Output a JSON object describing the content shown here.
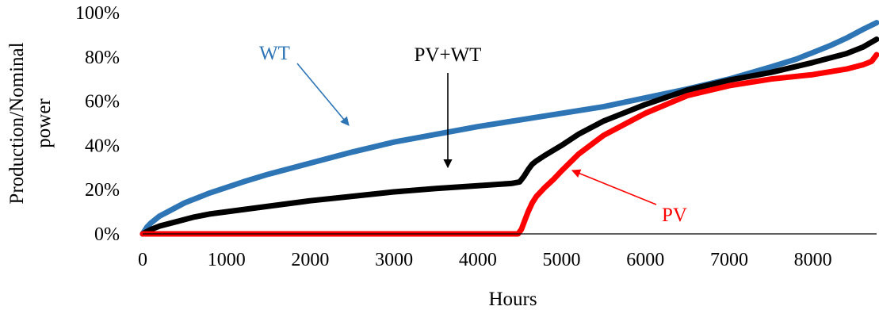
{
  "chart_data": {
    "type": "line",
    "xlabel": "Hours",
    "ylabel": [
      "Production/Nominal",
      "power"
    ],
    "xlim": [
      0,
      8760
    ],
    "ylim": [
      0,
      1
    ],
    "xticks": [
      "0",
      "1000",
      "2000",
      "3000",
      "4000",
      "5000",
      "6000",
      "7000",
      "8000"
    ],
    "yticks": [
      "0%",
      "20%",
      "40%",
      "60%",
      "80%",
      "100%"
    ],
    "grid": false,
    "legend": "none",
    "series": [
      {
        "name": "WT",
        "color": "#2e75b6",
        "x": [
          0,
          50,
          100,
          200,
          300,
          400,
          500,
          600,
          700,
          800,
          1000,
          1200,
          1500,
          2000,
          2500,
          3000,
          3500,
          4000,
          4500,
          5000,
          5500,
          6000,
          6500,
          7000,
          7500,
          7800,
          8000,
          8200,
          8400,
          8600,
          8760
        ],
        "y": [
          0.0,
          0.03,
          0.05,
          0.08,
          0.1,
          0.12,
          0.14,
          0.155,
          0.17,
          0.185,
          0.21,
          0.235,
          0.27,
          0.32,
          0.37,
          0.415,
          0.45,
          0.485,
          0.515,
          0.545,
          0.575,
          0.615,
          0.655,
          0.7,
          0.755,
          0.79,
          0.82,
          0.85,
          0.885,
          0.925,
          0.955
        ]
      },
      {
        "name": "PV+WT",
        "color": "#000000",
        "x": [
          0,
          100,
          200,
          400,
          600,
          800,
          1000,
          1500,
          2000,
          2500,
          3000,
          3500,
          4000,
          4400,
          4500,
          4550,
          4600,
          4650,
          4700,
          4800,
          5000,
          5200,
          5500,
          6000,
          6500,
          7000,
          7500,
          8000,
          8400,
          8600,
          8760
        ],
        "y": [
          0.0,
          0.02,
          0.035,
          0.055,
          0.075,
          0.09,
          0.1,
          0.125,
          0.15,
          0.17,
          0.19,
          0.205,
          0.218,
          0.228,
          0.235,
          0.26,
          0.29,
          0.315,
          0.33,
          0.355,
          0.4,
          0.45,
          0.51,
          0.585,
          0.65,
          0.695,
          0.73,
          0.775,
          0.815,
          0.845,
          0.88
        ]
      },
      {
        "name": "PV",
        "color": "#ff0000",
        "x": [
          0,
          1000,
          2000,
          3000,
          4000,
          4400,
          4480,
          4520,
          4560,
          4600,
          4650,
          4700,
          4800,
          4900,
          5000,
          5200,
          5500,
          6000,
          6500,
          7000,
          7500,
          8000,
          8400,
          8600,
          8700,
          8760
        ],
        "y": [
          0.0,
          0.0,
          0.0,
          0.0,
          0.0,
          0.0,
          0.0,
          0.02,
          0.06,
          0.1,
          0.14,
          0.17,
          0.21,
          0.245,
          0.285,
          0.36,
          0.445,
          0.545,
          0.625,
          0.67,
          0.7,
          0.72,
          0.745,
          0.765,
          0.78,
          0.81
        ]
      }
    ],
    "annotations": [
      {
        "text": "WT",
        "color": "#2e75b6"
      },
      {
        "text": "PV+WT",
        "color": "#000000"
      },
      {
        "text": "PV",
        "color": "#ff0000"
      }
    ]
  }
}
